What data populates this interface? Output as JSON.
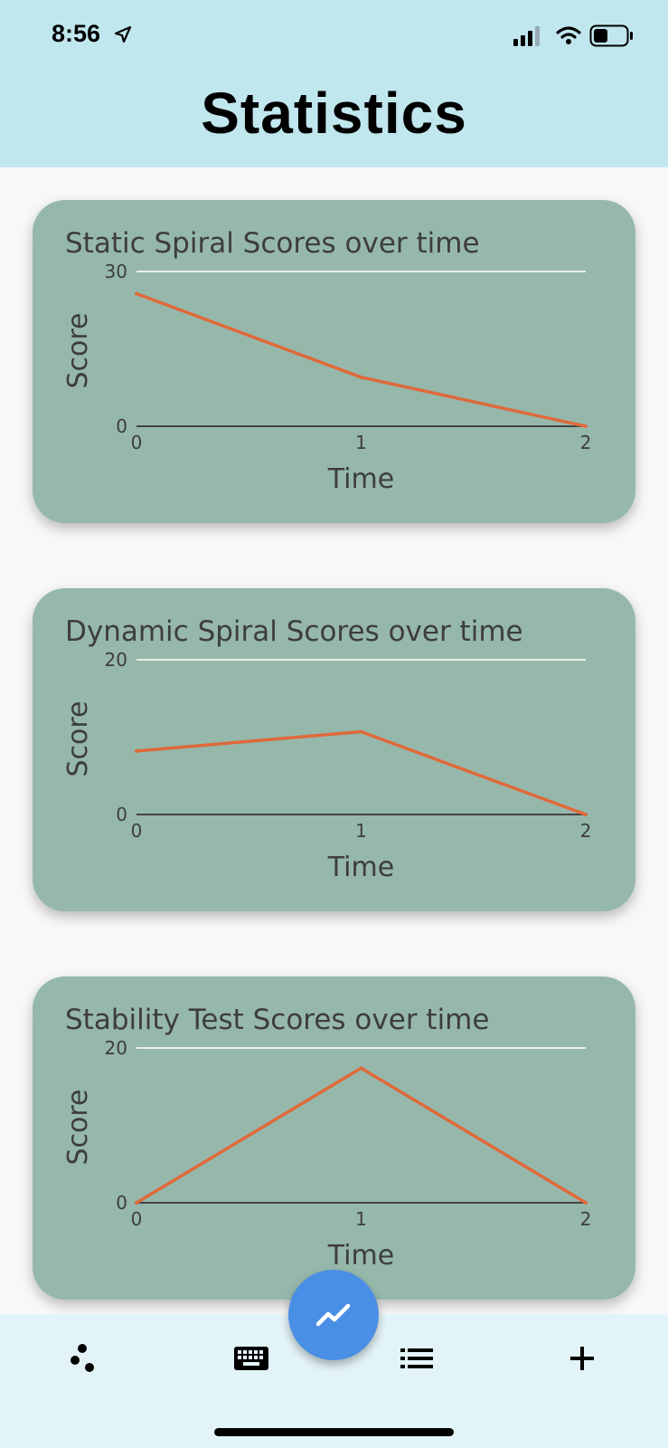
{
  "status_bar": {
    "time": "8:56",
    "icons": [
      "location-arrow-icon",
      "cellular-signal-icon",
      "wifi-icon",
      "battery-icon"
    ]
  },
  "header": {
    "title": "Statistics",
    "background": "#c1e7ee"
  },
  "colors": {
    "card": "#96b8ab",
    "line": "#e0693a",
    "fab": "#4a8fe6",
    "bottom_bar": "#e3f4f8"
  },
  "chart_data": [
    {
      "type": "line",
      "title": "Static Spiral Scores over time",
      "xlabel": "Time",
      "ylabel": "Score",
      "x": [
        0,
        1,
        2
      ],
      "y": [
        25.7,
        9.5,
        0
      ],
      "xlim": [
        0,
        2
      ],
      "ylim": [
        0,
        30
      ],
      "yticks": [
        "0",
        "30"
      ],
      "xticks": [
        "0",
        "1",
        "2"
      ]
    },
    {
      "type": "line",
      "title": "Dynamic Spiral Scores over time",
      "xlabel": "Time",
      "ylabel": "Score",
      "x": [
        0,
        1,
        2
      ],
      "y": [
        8.2,
        10.7,
        0
      ],
      "xlim": [
        0,
        2
      ],
      "ylim": [
        0,
        20
      ],
      "yticks": [
        "0",
        "20"
      ],
      "xticks": [
        "0",
        "1",
        "2"
      ]
    },
    {
      "type": "line",
      "title": "Stability Test Scores over time",
      "xlabel": "Time",
      "ylabel": "Score",
      "x": [
        0,
        1,
        2
      ],
      "y": [
        0,
        17.4,
        0
      ],
      "xlim": [
        0,
        2
      ],
      "ylim": [
        0,
        20
      ],
      "yticks": [
        "0",
        "20"
      ],
      "xticks": [
        "0",
        "1",
        "2"
      ]
    }
  ],
  "bottom_nav": {
    "items": [
      "scatter-dots-icon",
      "keyboard-icon",
      "list-icon",
      "plus-icon"
    ],
    "fab_icon": "trending-line-icon"
  }
}
